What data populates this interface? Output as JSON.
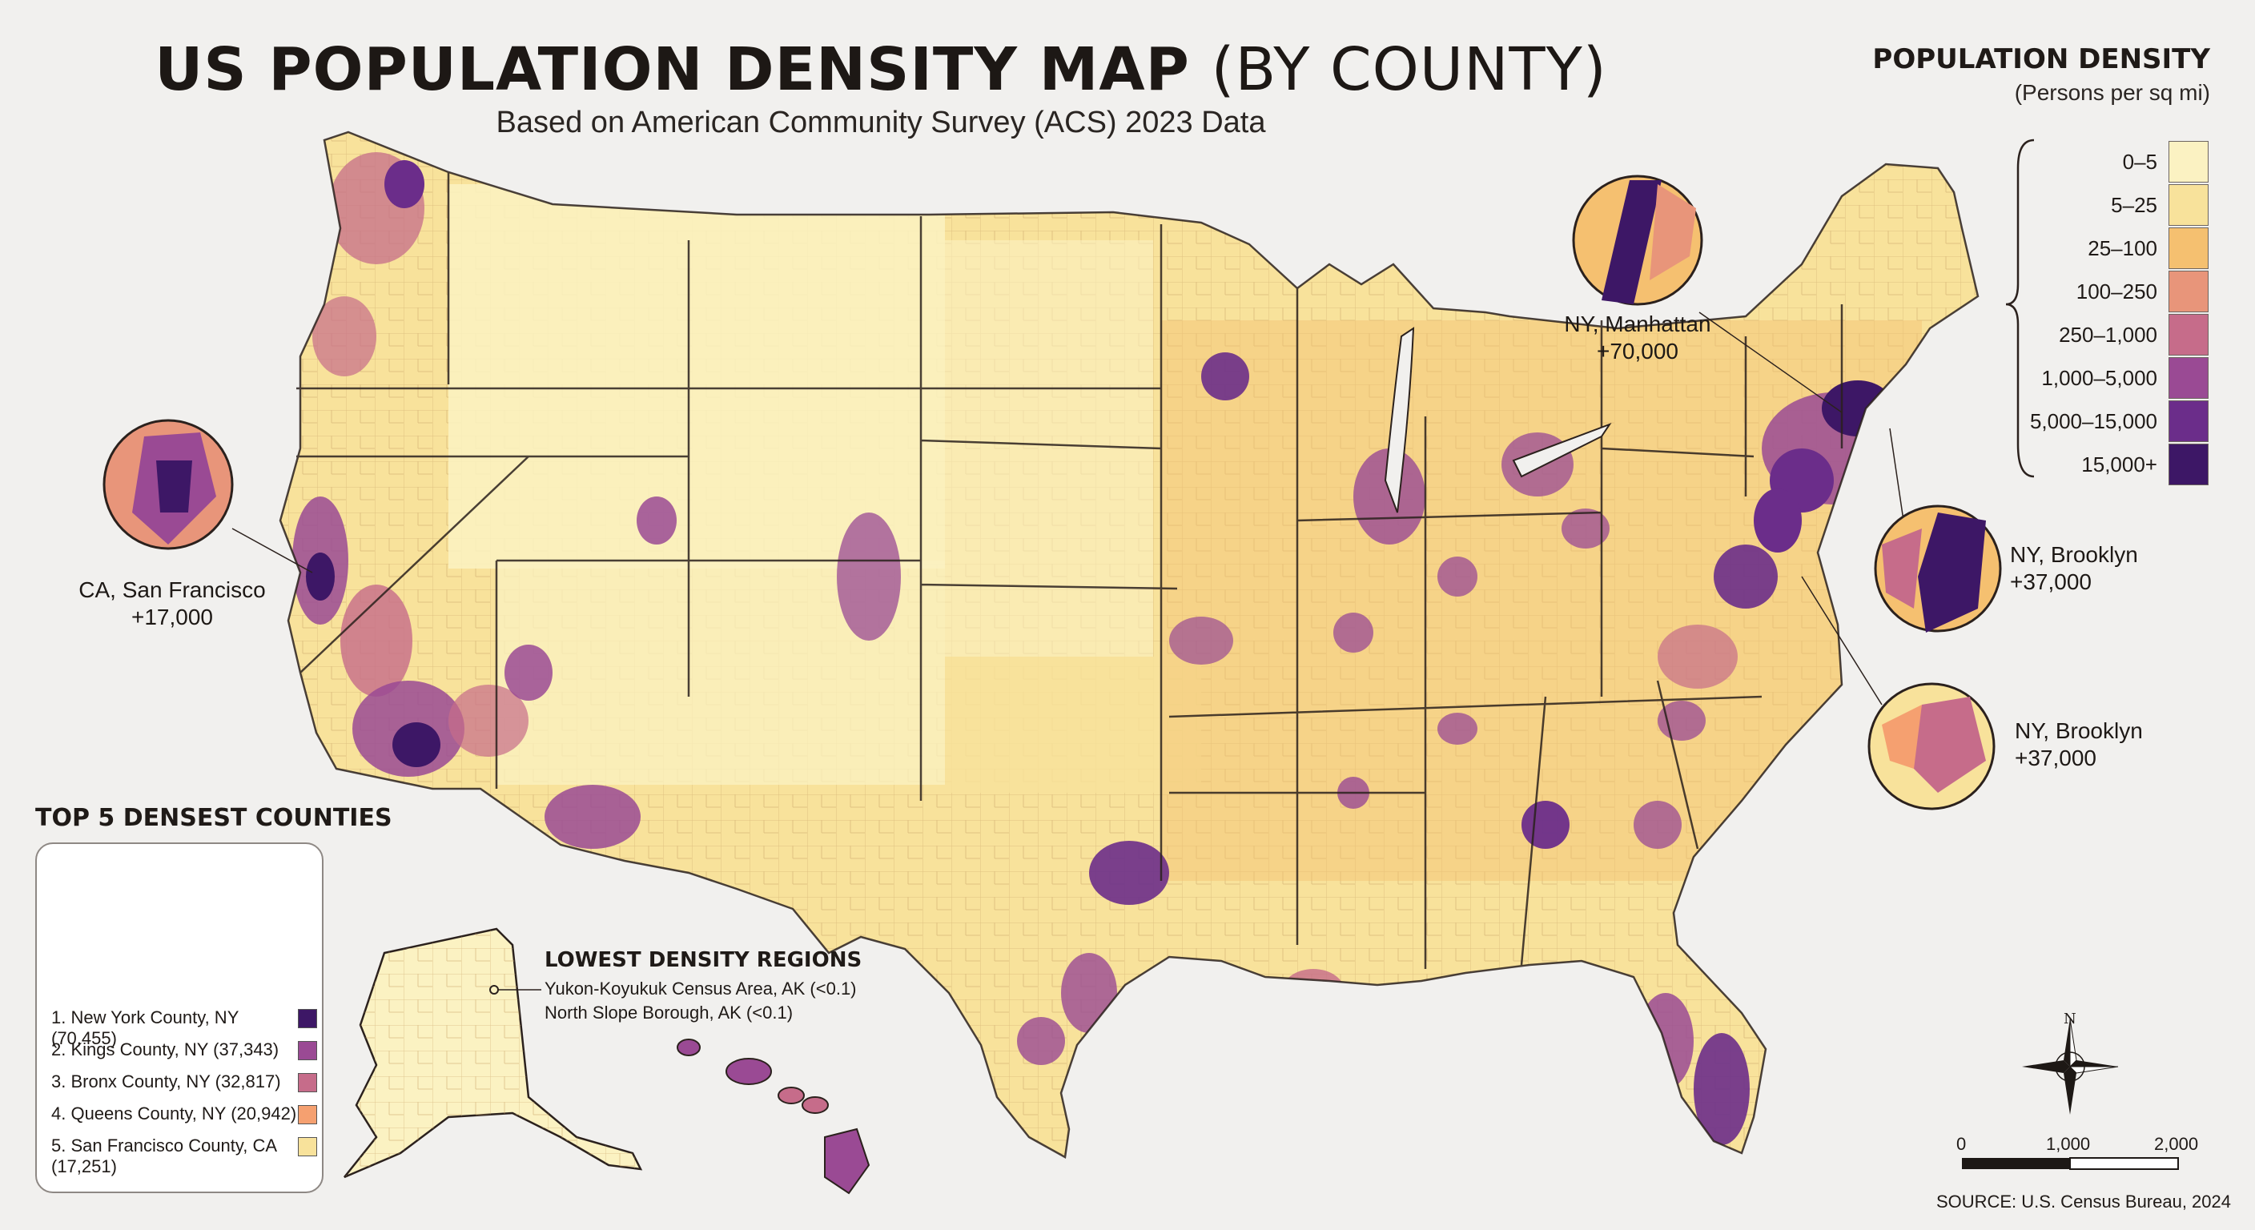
{
  "title": {
    "main": "US POPULATION DENSITY MAP",
    "paren": "(BY COUNTY)"
  },
  "subtitle": "Based on American Community Survey (ACS) 2023 Data",
  "legend": {
    "title": "POPULATION DENSITY",
    "subtitle": "(Persons per sq mi)",
    "classes": [
      {
        "label": "0–5",
        "color": "#fbf2c2"
      },
      {
        "label": "5–25",
        "color": "#f8e29b"
      },
      {
        "label": "25–100",
        "color": "#f5c070"
      },
      {
        "label": "100–250",
        "color": "#e8957a"
      },
      {
        "label": "250–1,000",
        "color": "#c66c8a"
      },
      {
        "label": "1,000–5,000",
        "color": "#9a4a94"
      },
      {
        "label": "5,000–15,000",
        "color": "#6b2d8a"
      },
      {
        "label": "15,000+",
        "color": "#3d1766"
      }
    ]
  },
  "callouts": [
    {
      "name": "NY, Manhattan",
      "value": "+70,000"
    },
    {
      "name": "NY, Brooklyn",
      "value": "+37,000"
    },
    {
      "name": "NY, Brooklyn",
      "value": "+37,000"
    },
    {
      "name": "CA, San Francisco",
      "value": "+17,000"
    }
  ],
  "top5": {
    "title": "TOP 5 DENSEST COUNTIES",
    "items": [
      {
        "label": "1. New York County, NY (70,455)",
        "value": 70455,
        "color": "#3d1766"
      },
      {
        "label": "2. Kings County, NY (37,343)",
        "value": 37343,
        "color": "#9a4a94"
      },
      {
        "label": "3. Bronx County, NY (32,817)",
        "value": 32817,
        "color": "#c66c8a"
      },
      {
        "label": "4. Queens County, NY (20,942)",
        "value": 20942,
        "color": "#f5a070"
      },
      {
        "label": "5. San Francisco County, CA",
        "label2": "(17,251)",
        "value": 17251,
        "color": "#f8e29b"
      }
    ]
  },
  "lowest": {
    "title": "LOWEST DENSITY REGIONS",
    "items": [
      "Yukon-Koyukuk Census Area, AK (<0.1)",
      "North Slope Borough, AK (<0.1)"
    ]
  },
  "compass": {
    "north": "N"
  },
  "scale": {
    "labels": [
      "0",
      "1,000",
      "2,000"
    ]
  },
  "source": "SOURCE: U.S. Census Bureau, 2024"
}
